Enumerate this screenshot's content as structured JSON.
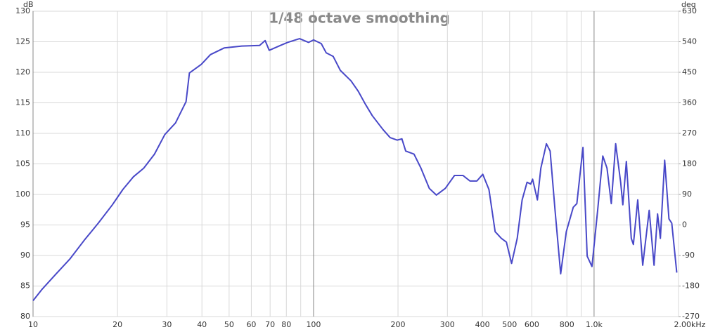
{
  "chart_data": {
    "type": "line",
    "title": "1/48 octave smoothing",
    "y_label": "dB",
    "y2_label": "deg",
    "log_x": true,
    "grid": true,
    "xlim": [
      10,
      2000
    ],
    "xticks": [
      10,
      20,
      30,
      40,
      50,
      60,
      70,
      80,
      100,
      200,
      300,
      400,
      500,
      600,
      800,
      {
        "value": 1000,
        "label": "1.0k"
      },
      {
        "value": 2000,
        "label": "2.00kHz"
      }
    ],
    "xminor": [
      90,
      900
    ],
    "ylim": [
      80,
      130
    ],
    "yticks": [
      80,
      85,
      90,
      95,
      100,
      105,
      110,
      115,
      120,
      125,
      130
    ],
    "y2lim": [
      -270,
      630
    ],
    "y2ticks": [
      -270,
      -180,
      -90,
      0,
      90,
      180,
      270,
      360,
      450,
      540,
      630
    ],
    "x": [
      10,
      10.78,
      12.09,
      13.57,
      15.22,
      17.08,
      19.17,
      20.9,
      22.8,
      24.8,
      27.1,
      29.5,
      32.2,
      35.1,
      36.1,
      39.8,
      42.9,
      48.1,
      55.5,
      64.2,
      67.2,
      69.5,
      76.2,
      80.8,
      89.1,
      96.0,
      100,
      106.5,
      110.9,
      117.5,
      124.6,
      136,
      144.3,
      152.9,
      162,
      177,
      187.5,
      198.6,
      206.5,
      213,
      228,
      241.5,
      258.5,
      274,
      295,
      318,
      341,
      361,
      382,
      401,
      422,
      444,
      467,
      487,
      508,
      532,
      554,
      577,
      594,
      604,
      628,
      646,
      676,
      697,
      726,
      760,
      796,
      843,
      868,
      913,
      945,
      983,
      1030,
      1074,
      1112,
      1152,
      1194,
      1244,
      1266,
      1303,
      1357,
      1381,
      1431,
      1491,
      1572,
      1636,
      1684,
      1723,
      1785,
      1849,
      1892,
      1971
    ],
    "series": [
      {
        "color": "#4848c8",
        "values": [
          82.6,
          84.5,
          87.0,
          89.5,
          92.5,
          95.3,
          98.3,
          100.8,
          102.9,
          104.3,
          106.6,
          109.8,
          111.7,
          115.2,
          119.9,
          121.3,
          122.9,
          124.0,
          124.3,
          124.4,
          125.2,
          123.6,
          124.4,
          124.9,
          125.5,
          124.9,
          125.3,
          124.7,
          123.2,
          122.6,
          120.3,
          118.6,
          116.9,
          114.8,
          112.9,
          110.6,
          109.3,
          108.9,
          109.1,
          107.1,
          106.6,
          104.3,
          101.0,
          99.9,
          101.0,
          103.1,
          103.1,
          102.2,
          102.2,
          103.3,
          100.8,
          93.9,
          92.8,
          92.2,
          88.7,
          92.8,
          99.1,
          102.0,
          101.7,
          102.5,
          99.1,
          104.3,
          108.3,
          107.1,
          97.4,
          87.0,
          93.9,
          97.9,
          98.5,
          107.7,
          89.9,
          88.2,
          97.4,
          106.3,
          104.3,
          98.5,
          108.3,
          102.0,
          98.3,
          105.4,
          92.8,
          91.8,
          99.1,
          88.4,
          97.4,
          88.4,
          96.8,
          92.8,
          105.6,
          96.0,
          95.3,
          87.2
        ]
      }
    ]
  }
}
